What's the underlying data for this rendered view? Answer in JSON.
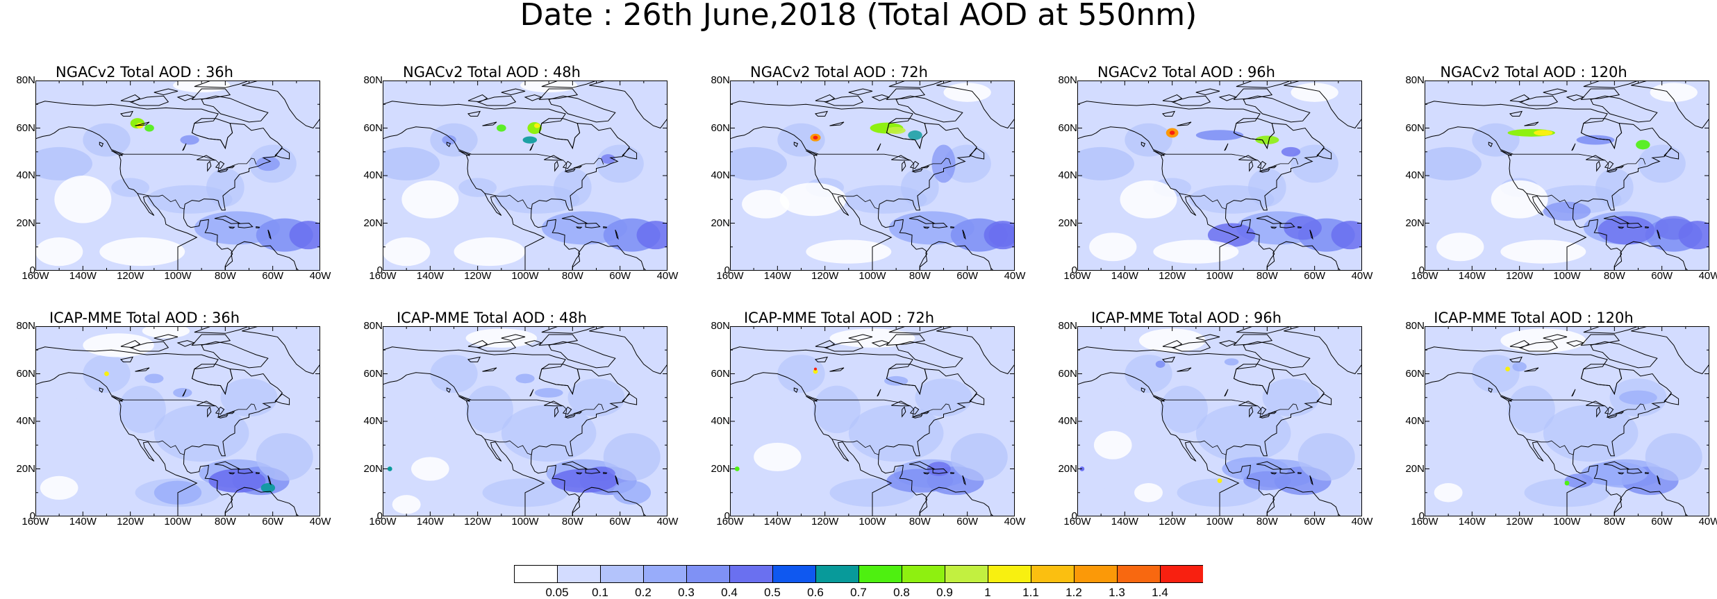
{
  "title": "Date : 26th June,2018 (Total AOD at 550nm)",
  "lat_labels": [
    "80N",
    "60N",
    "40N",
    "20N",
    "0"
  ],
  "lon_labels": [
    "160W",
    "140W",
    "120W",
    "100W",
    "80W",
    "60W",
    "40W"
  ],
  "panels": [
    {
      "title": "NGACv2 Total AOD : 36h",
      "model": "NGACv2",
      "lead": "36h"
    },
    {
      "title": "NGACv2 Total AOD : 48h",
      "model": "NGACv2",
      "lead": "48h"
    },
    {
      "title": "NGACv2 Total AOD : 72h",
      "model": "NGACv2",
      "lead": "72h"
    },
    {
      "title": "NGACv2 Total AOD : 96h",
      "model": "NGACv2",
      "lead": "96h"
    },
    {
      "title": "NGACv2 Total AOD : 120h",
      "model": "NGACv2",
      "lead": "120h"
    },
    {
      "title": "ICAP-MME Total AOD : 36h",
      "model": "ICAP-MME",
      "lead": "36h"
    },
    {
      "title": "ICAP-MME Total AOD : 48h",
      "model": "ICAP-MME",
      "lead": "48h"
    },
    {
      "title": "ICAP-MME Total AOD : 72h",
      "model": "ICAP-MME",
      "lead": "72h"
    },
    {
      "title": "ICAP-MME Total AOD : 96h",
      "model": "ICAP-MME",
      "lead": "96h"
    },
    {
      "title": "ICAP-MME Total AOD : 120h",
      "model": "ICAP-MME",
      "lead": "120h"
    }
  ],
  "colorbar": {
    "labels": [
      "0.05",
      "0.1",
      "0.2",
      "0.3",
      "0.4",
      "0.5",
      "0.6",
      "0.7",
      "0.8",
      "0.9",
      "1",
      "1.1",
      "1.2",
      "1.3",
      "1.4"
    ],
    "colors": [
      "#ffffff",
      "#d3dcff",
      "#b3c3fb",
      "#98acfa",
      "#7f91f5",
      "#6a70f0",
      "#0f58f0",
      "#089a9a",
      "#4ef010",
      "#8ef010",
      "#c2f040",
      "#f8f010",
      "#fbbf10",
      "#fb9908",
      "#f86810",
      "#f82010"
    ]
  }
}
